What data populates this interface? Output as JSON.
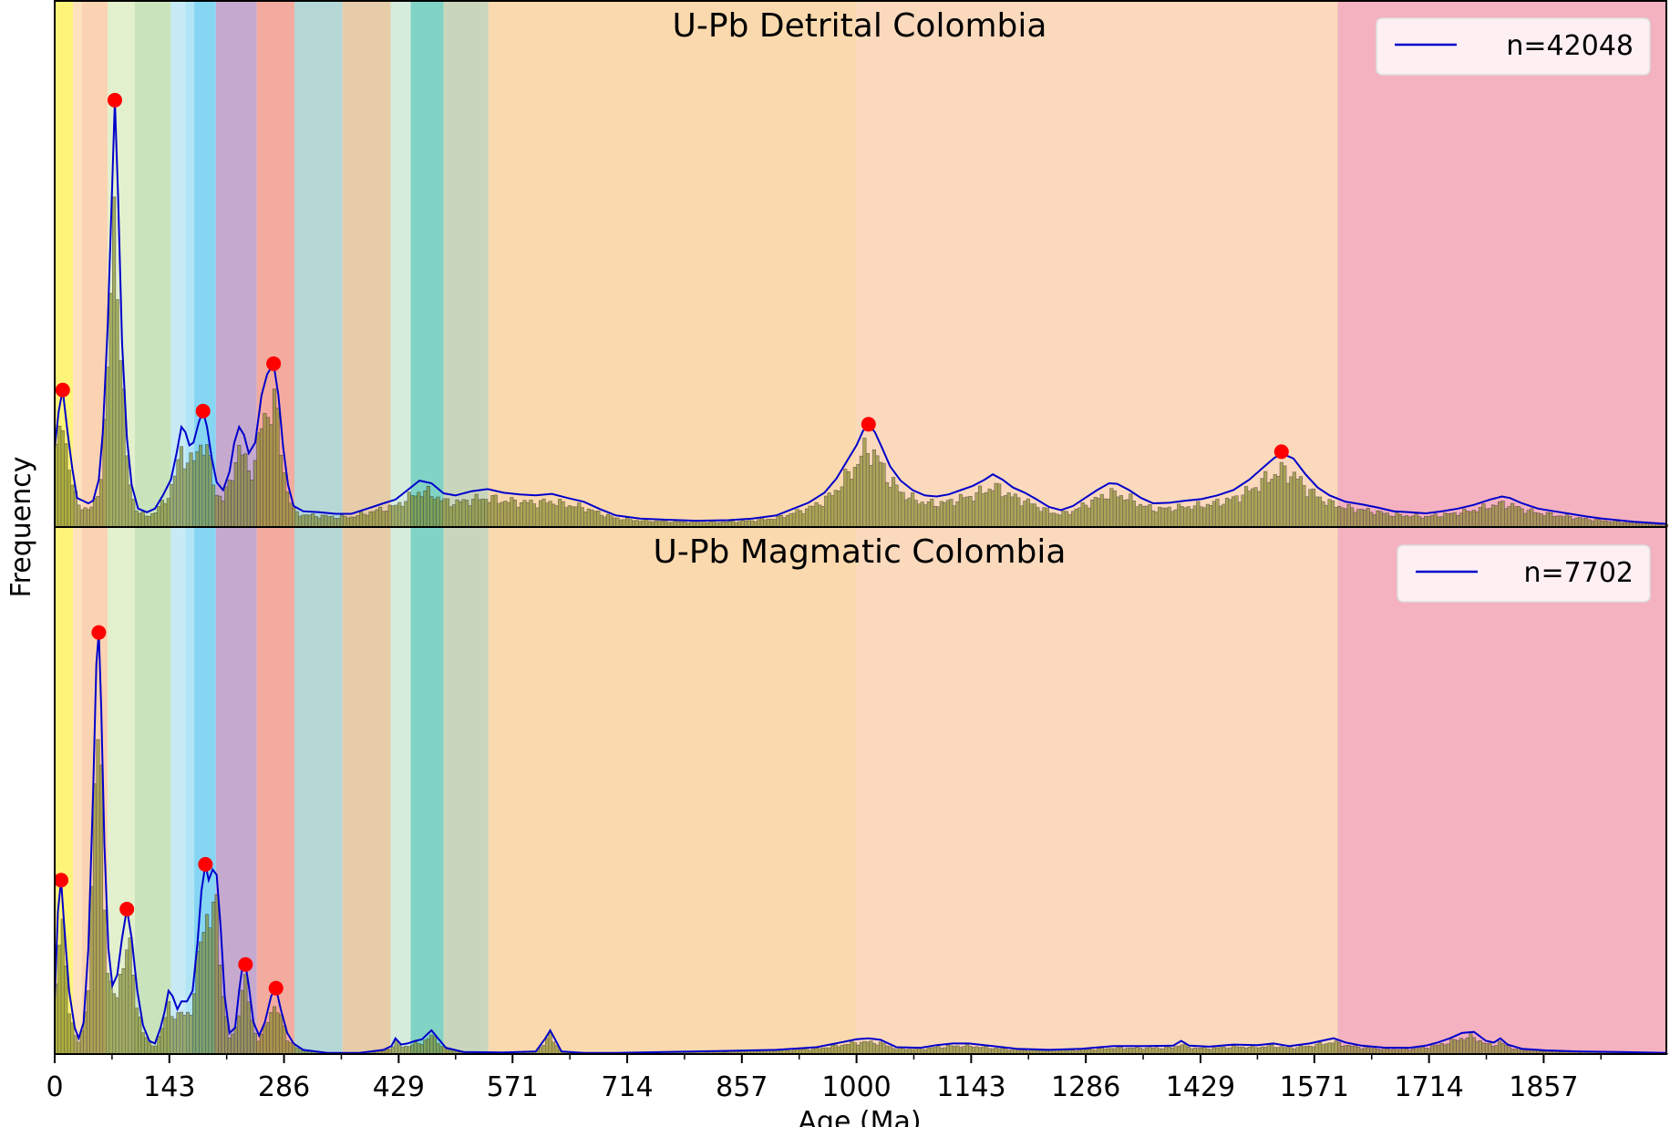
{
  "chart_data": {
    "type": "area",
    "xlabel": "Age (Ma)",
    "ylabel": "Frequency",
    "xlim": [
      0,
      2010
    ],
    "x_ticks": [
      0,
      143,
      286,
      429,
      571,
      714,
      857,
      1000,
      1143,
      1286,
      1429,
      1571,
      1714,
      1857
    ],
    "x_tick_labels": [
      "0",
      "143",
      "286",
      "429",
      "571",
      "714",
      "857",
      "1000",
      "1143",
      "1286",
      "1429",
      "1571",
      "1714",
      "1857"
    ],
    "background_bands": [
      {
        "start": 0,
        "end": 23,
        "color": "#fef47a"
      },
      {
        "start": 23,
        "end": 34,
        "color": "#fde2bd"
      },
      {
        "start": 34,
        "end": 66,
        "color": "#fbd3b2"
      },
      {
        "start": 66,
        "end": 100,
        "color": "#e3f0cd"
      },
      {
        "start": 100,
        "end": 145,
        "color": "#c9e4bd"
      },
      {
        "start": 145,
        "end": 163,
        "color": "#c7eaf6"
      },
      {
        "start": 163,
        "end": 174,
        "color": "#b1e5f5"
      },
      {
        "start": 174,
        "end": 201,
        "color": "#85d5f3"
      },
      {
        "start": 201,
        "end": 252,
        "color": "#c6a9cf"
      },
      {
        "start": 252,
        "end": 299,
        "color": "#f2ab9e"
      },
      {
        "start": 299,
        "end": 359,
        "color": "#b5d7d5"
      },
      {
        "start": 359,
        "end": 419,
        "color": "#e6cca8"
      },
      {
        "start": 419,
        "end": 444,
        "color": "#d5ecdc"
      },
      {
        "start": 444,
        "end": 485,
        "color": "#80d3c5"
      },
      {
        "start": 485,
        "end": 541,
        "color": "#c9d6bb"
      },
      {
        "start": 541,
        "end": 1000,
        "color": "#fbd9ae"
      },
      {
        "start": 1000,
        "end": 1600,
        "color": "#fad9bd"
      },
      {
        "start": 1600,
        "end": 2010,
        "color": "#f4b1bf"
      }
    ],
    "panels": [
      {
        "title": "U-Pb Detrital Colombia",
        "legend": "n=42048",
        "legend_position": "top-right",
        "line_color": "#0000cc",
        "peak_color": "#ff0000",
        "peaks": [
          {
            "age": 10,
            "height": 0.26
          },
          {
            "age": 75,
            "height": 0.81
          },
          {
            "age": 185,
            "height": 0.22
          },
          {
            "age": 273,
            "height": 0.31
          },
          {
            "age": 1015,
            "height": 0.195
          },
          {
            "age": 1530,
            "height": 0.143
          }
        ],
        "density": [
          [
            0,
            0.15
          ],
          [
            5,
            0.22
          ],
          [
            10,
            0.26
          ],
          [
            16,
            0.18
          ],
          [
            22,
            0.11
          ],
          [
            28,
            0.055
          ],
          [
            35,
            0.05
          ],
          [
            42,
            0.045
          ],
          [
            48,
            0.05
          ],
          [
            55,
            0.09
          ],
          [
            60,
            0.18
          ],
          [
            66,
            0.38
          ],
          [
            72,
            0.66
          ],
          [
            75,
            0.81
          ],
          [
            79,
            0.63
          ],
          [
            84,
            0.35
          ],
          [
            90,
            0.17
          ],
          [
            96,
            0.08
          ],
          [
            104,
            0.035
          ],
          [
            115,
            0.028
          ],
          [
            125,
            0.035
          ],
          [
            135,
            0.06
          ],
          [
            145,
            0.09
          ],
          [
            152,
            0.14
          ],
          [
            158,
            0.19
          ],
          [
            163,
            0.18
          ],
          [
            168,
            0.155
          ],
          [
            173,
            0.16
          ],
          [
            180,
            0.2
          ],
          [
            185,
            0.22
          ],
          [
            190,
            0.19
          ],
          [
            196,
            0.13
          ],
          [
            202,
            0.085
          ],
          [
            210,
            0.07
          ],
          [
            218,
            0.105
          ],
          [
            224,
            0.16
          ],
          [
            230,
            0.19
          ],
          [
            236,
            0.175
          ],
          [
            242,
            0.14
          ],
          [
            250,
            0.16
          ],
          [
            258,
            0.25
          ],
          [
            265,
            0.29
          ],
          [
            273,
            0.31
          ],
          [
            279,
            0.25
          ],
          [
            285,
            0.15
          ],
          [
            291,
            0.08
          ],
          [
            298,
            0.04
          ],
          [
            310,
            0.03
          ],
          [
            330,
            0.028
          ],
          [
            350,
            0.025
          ],
          [
            370,
            0.025
          ],
          [
            390,
            0.035
          ],
          [
            410,
            0.045
          ],
          [
            425,
            0.052
          ],
          [
            440,
            0.07
          ],
          [
            455,
            0.088
          ],
          [
            470,
            0.083
          ],
          [
            485,
            0.064
          ],
          [
            500,
            0.06
          ],
          [
            520,
            0.068
          ],
          [
            540,
            0.072
          ],
          [
            560,
            0.065
          ],
          [
            580,
            0.062
          ],
          [
            600,
            0.06
          ],
          [
            620,
            0.063
          ],
          [
            640,
            0.055
          ],
          [
            660,
            0.048
          ],
          [
            680,
            0.034
          ],
          [
            700,
            0.022
          ],
          [
            730,
            0.016
          ],
          [
            760,
            0.014
          ],
          [
            800,
            0.012
          ],
          [
            840,
            0.013
          ],
          [
            870,
            0.016
          ],
          [
            900,
            0.022
          ],
          [
            920,
            0.034
          ],
          [
            940,
            0.046
          ],
          [
            960,
            0.065
          ],
          [
            975,
            0.092
          ],
          [
            990,
            0.13
          ],
          [
            1000,
            0.155
          ],
          [
            1008,
            0.182
          ],
          [
            1015,
            0.195
          ],
          [
            1023,
            0.18
          ],
          [
            1032,
            0.15
          ],
          [
            1042,
            0.115
          ],
          [
            1055,
            0.088
          ],
          [
            1070,
            0.07
          ],
          [
            1085,
            0.06
          ],
          [
            1100,
            0.058
          ],
          [
            1115,
            0.062
          ],
          [
            1130,
            0.07
          ],
          [
            1145,
            0.078
          ],
          [
            1160,
            0.09
          ],
          [
            1170,
            0.1
          ],
          [
            1182,
            0.09
          ],
          [
            1195,
            0.075
          ],
          [
            1210,
            0.065
          ],
          [
            1225,
            0.052
          ],
          [
            1240,
            0.038
          ],
          [
            1255,
            0.032
          ],
          [
            1270,
            0.04
          ],
          [
            1285,
            0.055
          ],
          [
            1300,
            0.07
          ],
          [
            1315,
            0.083
          ],
          [
            1325,
            0.082
          ],
          [
            1340,
            0.07
          ],
          [
            1355,
            0.055
          ],
          [
            1370,
            0.045
          ],
          [
            1390,
            0.046
          ],
          [
            1410,
            0.05
          ],
          [
            1430,
            0.053
          ],
          [
            1450,
            0.06
          ],
          [
            1470,
            0.07
          ],
          [
            1490,
            0.09
          ],
          [
            1505,
            0.11
          ],
          [
            1520,
            0.13
          ],
          [
            1530,
            0.14
          ],
          [
            1545,
            0.13
          ],
          [
            1560,
            0.1
          ],
          [
            1575,
            0.075
          ],
          [
            1590,
            0.06
          ],
          [
            1610,
            0.048
          ],
          [
            1630,
            0.043
          ],
          [
            1650,
            0.037
          ],
          [
            1670,
            0.03
          ],
          [
            1690,
            0.028
          ],
          [
            1710,
            0.026
          ],
          [
            1730,
            0.03
          ],
          [
            1750,
            0.035
          ],
          [
            1770,
            0.042
          ],
          [
            1790,
            0.052
          ],
          [
            1805,
            0.058
          ],
          [
            1815,
            0.055
          ],
          [
            1830,
            0.045
          ],
          [
            1850,
            0.035
          ],
          [
            1870,
            0.03
          ],
          [
            1890,
            0.025
          ],
          [
            1910,
            0.02
          ],
          [
            1930,
            0.016
          ],
          [
            1950,
            0.013
          ],
          [
            1970,
            0.01
          ],
          [
            1990,
            0.008
          ],
          [
            2010,
            0.006
          ]
        ]
      },
      {
        "title": "U-Pb Magmatic Colombia",
        "legend": "n=7702",
        "legend_position": "top-right",
        "line_color": "#0000cc",
        "peak_color": "#ff0000",
        "peaks": [
          {
            "age": 8,
            "height": 0.33
          },
          {
            "age": 55,
            "height": 0.8
          },
          {
            "age": 90,
            "height": 0.275
          },
          {
            "age": 188,
            "height": 0.36
          },
          {
            "age": 238,
            "height": 0.17
          },
          {
            "age": 276,
            "height": 0.125
          }
        ],
        "density": [
          [
            0,
            0.1
          ],
          [
            4,
            0.27
          ],
          [
            8,
            0.33
          ],
          [
            12,
            0.24
          ],
          [
            18,
            0.12
          ],
          [
            25,
            0.05
          ],
          [
            30,
            0.03
          ],
          [
            36,
            0.06
          ],
          [
            42,
            0.2
          ],
          [
            48,
            0.5
          ],
          [
            52,
            0.74
          ],
          [
            55,
            0.8
          ],
          [
            58,
            0.66
          ],
          [
            62,
            0.4
          ],
          [
            67,
            0.2
          ],
          [
            72,
            0.13
          ],
          [
            78,
            0.15
          ],
          [
            84,
            0.22
          ],
          [
            90,
            0.275
          ],
          [
            96,
            0.22
          ],
          [
            103,
            0.12
          ],
          [
            110,
            0.055
          ],
          [
            118,
            0.025
          ],
          [
            125,
            0.02
          ],
          [
            132,
            0.05
          ],
          [
            137,
            0.08
          ],
          [
            142,
            0.12
          ],
          [
            147,
            0.11
          ],
          [
            153,
            0.085
          ],
          [
            158,
            0.1
          ],
          [
            165,
            0.1
          ],
          [
            172,
            0.12
          ],
          [
            178,
            0.21
          ],
          [
            183,
            0.31
          ],
          [
            188,
            0.36
          ],
          [
            192,
            0.33
          ],
          [
            197,
            0.35
          ],
          [
            202,
            0.34
          ],
          [
            207,
            0.24
          ],
          [
            212,
            0.11
          ],
          [
            218,
            0.04
          ],
          [
            225,
            0.05
          ],
          [
            230,
            0.12
          ],
          [
            234,
            0.165
          ],
          [
            238,
            0.17
          ],
          [
            242,
            0.13
          ],
          [
            248,
            0.06
          ],
          [
            255,
            0.035
          ],
          [
            262,
            0.06
          ],
          [
            270,
            0.11
          ],
          [
            276,
            0.125
          ],
          [
            282,
            0.085
          ],
          [
            290,
            0.04
          ],
          [
            298,
            0.02
          ],
          [
            310,
            0.008
          ],
          [
            340,
            0.002
          ],
          [
            380,
            0.002
          ],
          [
            410,
            0.008
          ],
          [
            420,
            0.015
          ],
          [
            425,
            0.03
          ],
          [
            432,
            0.018
          ],
          [
            440,
            0.02
          ],
          [
            450,
            0.025
          ],
          [
            458,
            0.028
          ],
          [
            465,
            0.038
          ],
          [
            470,
            0.045
          ],
          [
            478,
            0.03
          ],
          [
            488,
            0.012
          ],
          [
            510,
            0.004
          ],
          [
            560,
            0.003
          ],
          [
            600,
            0.005
          ],
          [
            612,
            0.03
          ],
          [
            618,
            0.045
          ],
          [
            624,
            0.028
          ],
          [
            632,
            0.005
          ],
          [
            660,
            0.002
          ],
          [
            700,
            0.002
          ],
          [
            760,
            0.004
          ],
          [
            840,
            0.006
          ],
          [
            900,
            0.008
          ],
          [
            950,
            0.013
          ],
          [
            980,
            0.022
          ],
          [
            1000,
            0.028
          ],
          [
            1015,
            0.03
          ],
          [
            1030,
            0.027
          ],
          [
            1050,
            0.013
          ],
          [
            1080,
            0.012
          ],
          [
            1100,
            0.017
          ],
          [
            1120,
            0.02
          ],
          [
            1140,
            0.02
          ],
          [
            1170,
            0.015
          ],
          [
            1200,
            0.01
          ],
          [
            1240,
            0.008
          ],
          [
            1280,
            0.01
          ],
          [
            1320,
            0.015
          ],
          [
            1360,
            0.015
          ],
          [
            1395,
            0.016
          ],
          [
            1405,
            0.025
          ],
          [
            1415,
            0.016
          ],
          [
            1440,
            0.014
          ],
          [
            1470,
            0.018
          ],
          [
            1500,
            0.017
          ],
          [
            1520,
            0.02
          ],
          [
            1540,
            0.015
          ],
          [
            1565,
            0.02
          ],
          [
            1580,
            0.025
          ],
          [
            1595,
            0.03
          ],
          [
            1610,
            0.022
          ],
          [
            1630,
            0.016
          ],
          [
            1660,
            0.012
          ],
          [
            1690,
            0.012
          ],
          [
            1710,
            0.016
          ],
          [
            1725,
            0.022
          ],
          [
            1740,
            0.03
          ],
          [
            1755,
            0.04
          ],
          [
            1770,
            0.042
          ],
          [
            1785,
            0.025
          ],
          [
            1795,
            0.022
          ],
          [
            1803,
            0.03
          ],
          [
            1812,
            0.018
          ],
          [
            1830,
            0.01
          ],
          [
            1860,
            0.007
          ],
          [
            1900,
            0.005
          ],
          [
            1950,
            0.004
          ],
          [
            2010,
            0.002
          ]
        ]
      }
    ]
  }
}
